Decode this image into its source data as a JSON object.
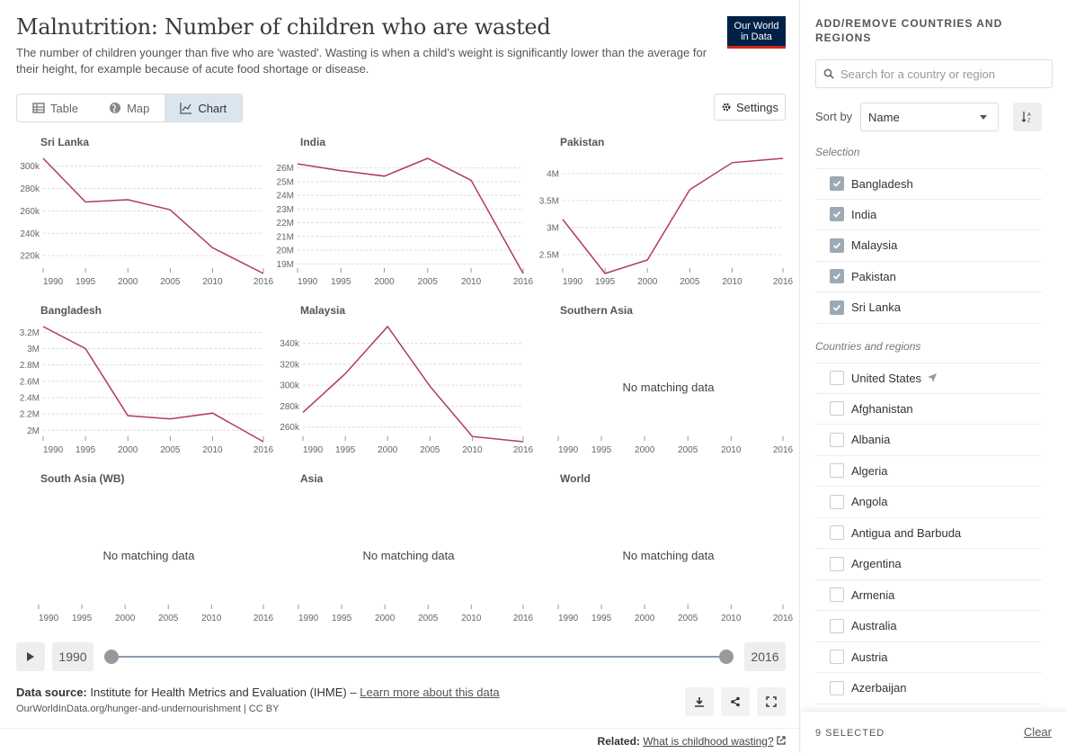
{
  "title": "Malnutrition: Number of children who are wasted",
  "subtitle": "The number of children younger than five who are 'wasted'. Wasting is when a child’s weight is significantly lower than the average for their height, for example because of acute food shortage or disease.",
  "logo": {
    "line1": "Our World",
    "line2": "in Data",
    "bg": "#002147",
    "accent": "#ce261e"
  },
  "tabs": [
    {
      "label": "Table",
      "icon": "table-icon"
    },
    {
      "label": "Map",
      "icon": "globe-icon"
    },
    {
      "label": "Chart",
      "icon": "line-chart-icon",
      "active": true
    }
  ],
  "settings_label": "Settings",
  "line_color": "#b13c52",
  "no_data_text": "No matching data",
  "chart_data": [
    {
      "type": "line",
      "title": "Sri Lanka",
      "x": [
        1990,
        1995,
        2000,
        2005,
        2010,
        2016
      ],
      "y": [
        307000,
        268000,
        270000,
        261000,
        227000,
        204000
      ],
      "yticks": [
        220000,
        240000,
        260000,
        280000,
        300000
      ],
      "ytick_labels": [
        "220k",
        "240k",
        "260k",
        "280k",
        "300k"
      ],
      "ylim": [
        204000,
        307000
      ]
    },
    {
      "type": "line",
      "title": "India",
      "x": [
        1990,
        1995,
        2000,
        2005,
        2010,
        2016
      ],
      "y": [
        26300000,
        25800000,
        25400000,
        26700000,
        25100000,
        18300000
      ],
      "yticks": [
        19000000,
        20000000,
        21000000,
        22000000,
        23000000,
        24000000,
        25000000,
        26000000
      ],
      "ytick_labels": [
        "19M",
        "20M",
        "21M",
        "22M",
        "23M",
        "24M",
        "25M",
        "26M"
      ],
      "ylim": [
        18300000,
        26700000
      ]
    },
    {
      "type": "line",
      "title": "Pakistan",
      "x": [
        1990,
        1995,
        2000,
        2005,
        2010,
        2016
      ],
      "y": [
        3150000,
        2150000,
        2400000,
        3700000,
        4200000,
        4280000
      ],
      "yticks": [
        2500000,
        3000000,
        3500000,
        4000000
      ],
      "ytick_labels": [
        "2.5M",
        "3M",
        "3.5M",
        "4M"
      ],
      "ylim": [
        2150000,
        4280000
      ]
    },
    {
      "type": "line",
      "title": "Bangladesh",
      "x": [
        1990,
        1995,
        2000,
        2005,
        2010,
        2016
      ],
      "y": [
        3270000,
        3000000,
        2180000,
        2140000,
        2210000,
        1860000
      ],
      "yticks": [
        2000000,
        2200000,
        2400000,
        2600000,
        2800000,
        3000000,
        3200000
      ],
      "ytick_labels": [
        "2M",
        "2.2M",
        "2.4M",
        "2.6M",
        "2.8M",
        "3M",
        "3.2M"
      ],
      "ylim": [
        1860000,
        3270000
      ]
    },
    {
      "type": "line",
      "title": "Malaysia",
      "x": [
        1990,
        1995,
        2000,
        2005,
        2010,
        2016
      ],
      "y": [
        274000,
        311000,
        356000,
        299000,
        251000,
        246000
      ],
      "yticks": [
        260000,
        280000,
        300000,
        320000,
        340000
      ],
      "ytick_labels": [
        "260k",
        "280k",
        "300k",
        "320k",
        "340k"
      ],
      "ylim": [
        246000,
        356000
      ]
    },
    {
      "type": "line",
      "title": "Southern Asia",
      "x": [],
      "y": []
    },
    {
      "type": "line",
      "title": "South Asia (WB)",
      "x": [],
      "y": []
    },
    {
      "type": "line",
      "title": "Asia",
      "x": [],
      "y": []
    },
    {
      "type": "line",
      "title": "World",
      "x": [],
      "y": []
    }
  ],
  "x_ticks": [
    1990,
    1995,
    2000,
    2005,
    2010,
    2016
  ],
  "timeline": {
    "start": "1990",
    "end": "2016"
  },
  "footer": {
    "source_label": "Data source:",
    "source_text": "Institute for Health Metrics and Evaluation (IHME) –",
    "source_link": "Learn more about this data",
    "url": "OurWorldInData.org/hunger-and-undernourishment | CC BY",
    "related_label": "Related:",
    "related_link": "What is childhood wasting?"
  },
  "sidebar": {
    "title": "ADD/REMOVE COUNTRIES AND REGIONS",
    "search_placeholder": "Search for a country or region",
    "sort_label": "Sort by",
    "sort_value": "Name",
    "selection_label": "Selection",
    "selected": [
      "Bangladesh",
      "India",
      "Malaysia",
      "Pakistan",
      "Sri Lanka"
    ],
    "countries_label": "Countries and regions",
    "countries": [
      "United States",
      "Afghanistan",
      "Albania",
      "Algeria",
      "Angola",
      "Antigua and Barbuda",
      "Argentina",
      "Armenia",
      "Australia",
      "Austria",
      "Azerbaijan"
    ],
    "selected_count": "9 SELECTED",
    "clear_label": "Clear"
  }
}
